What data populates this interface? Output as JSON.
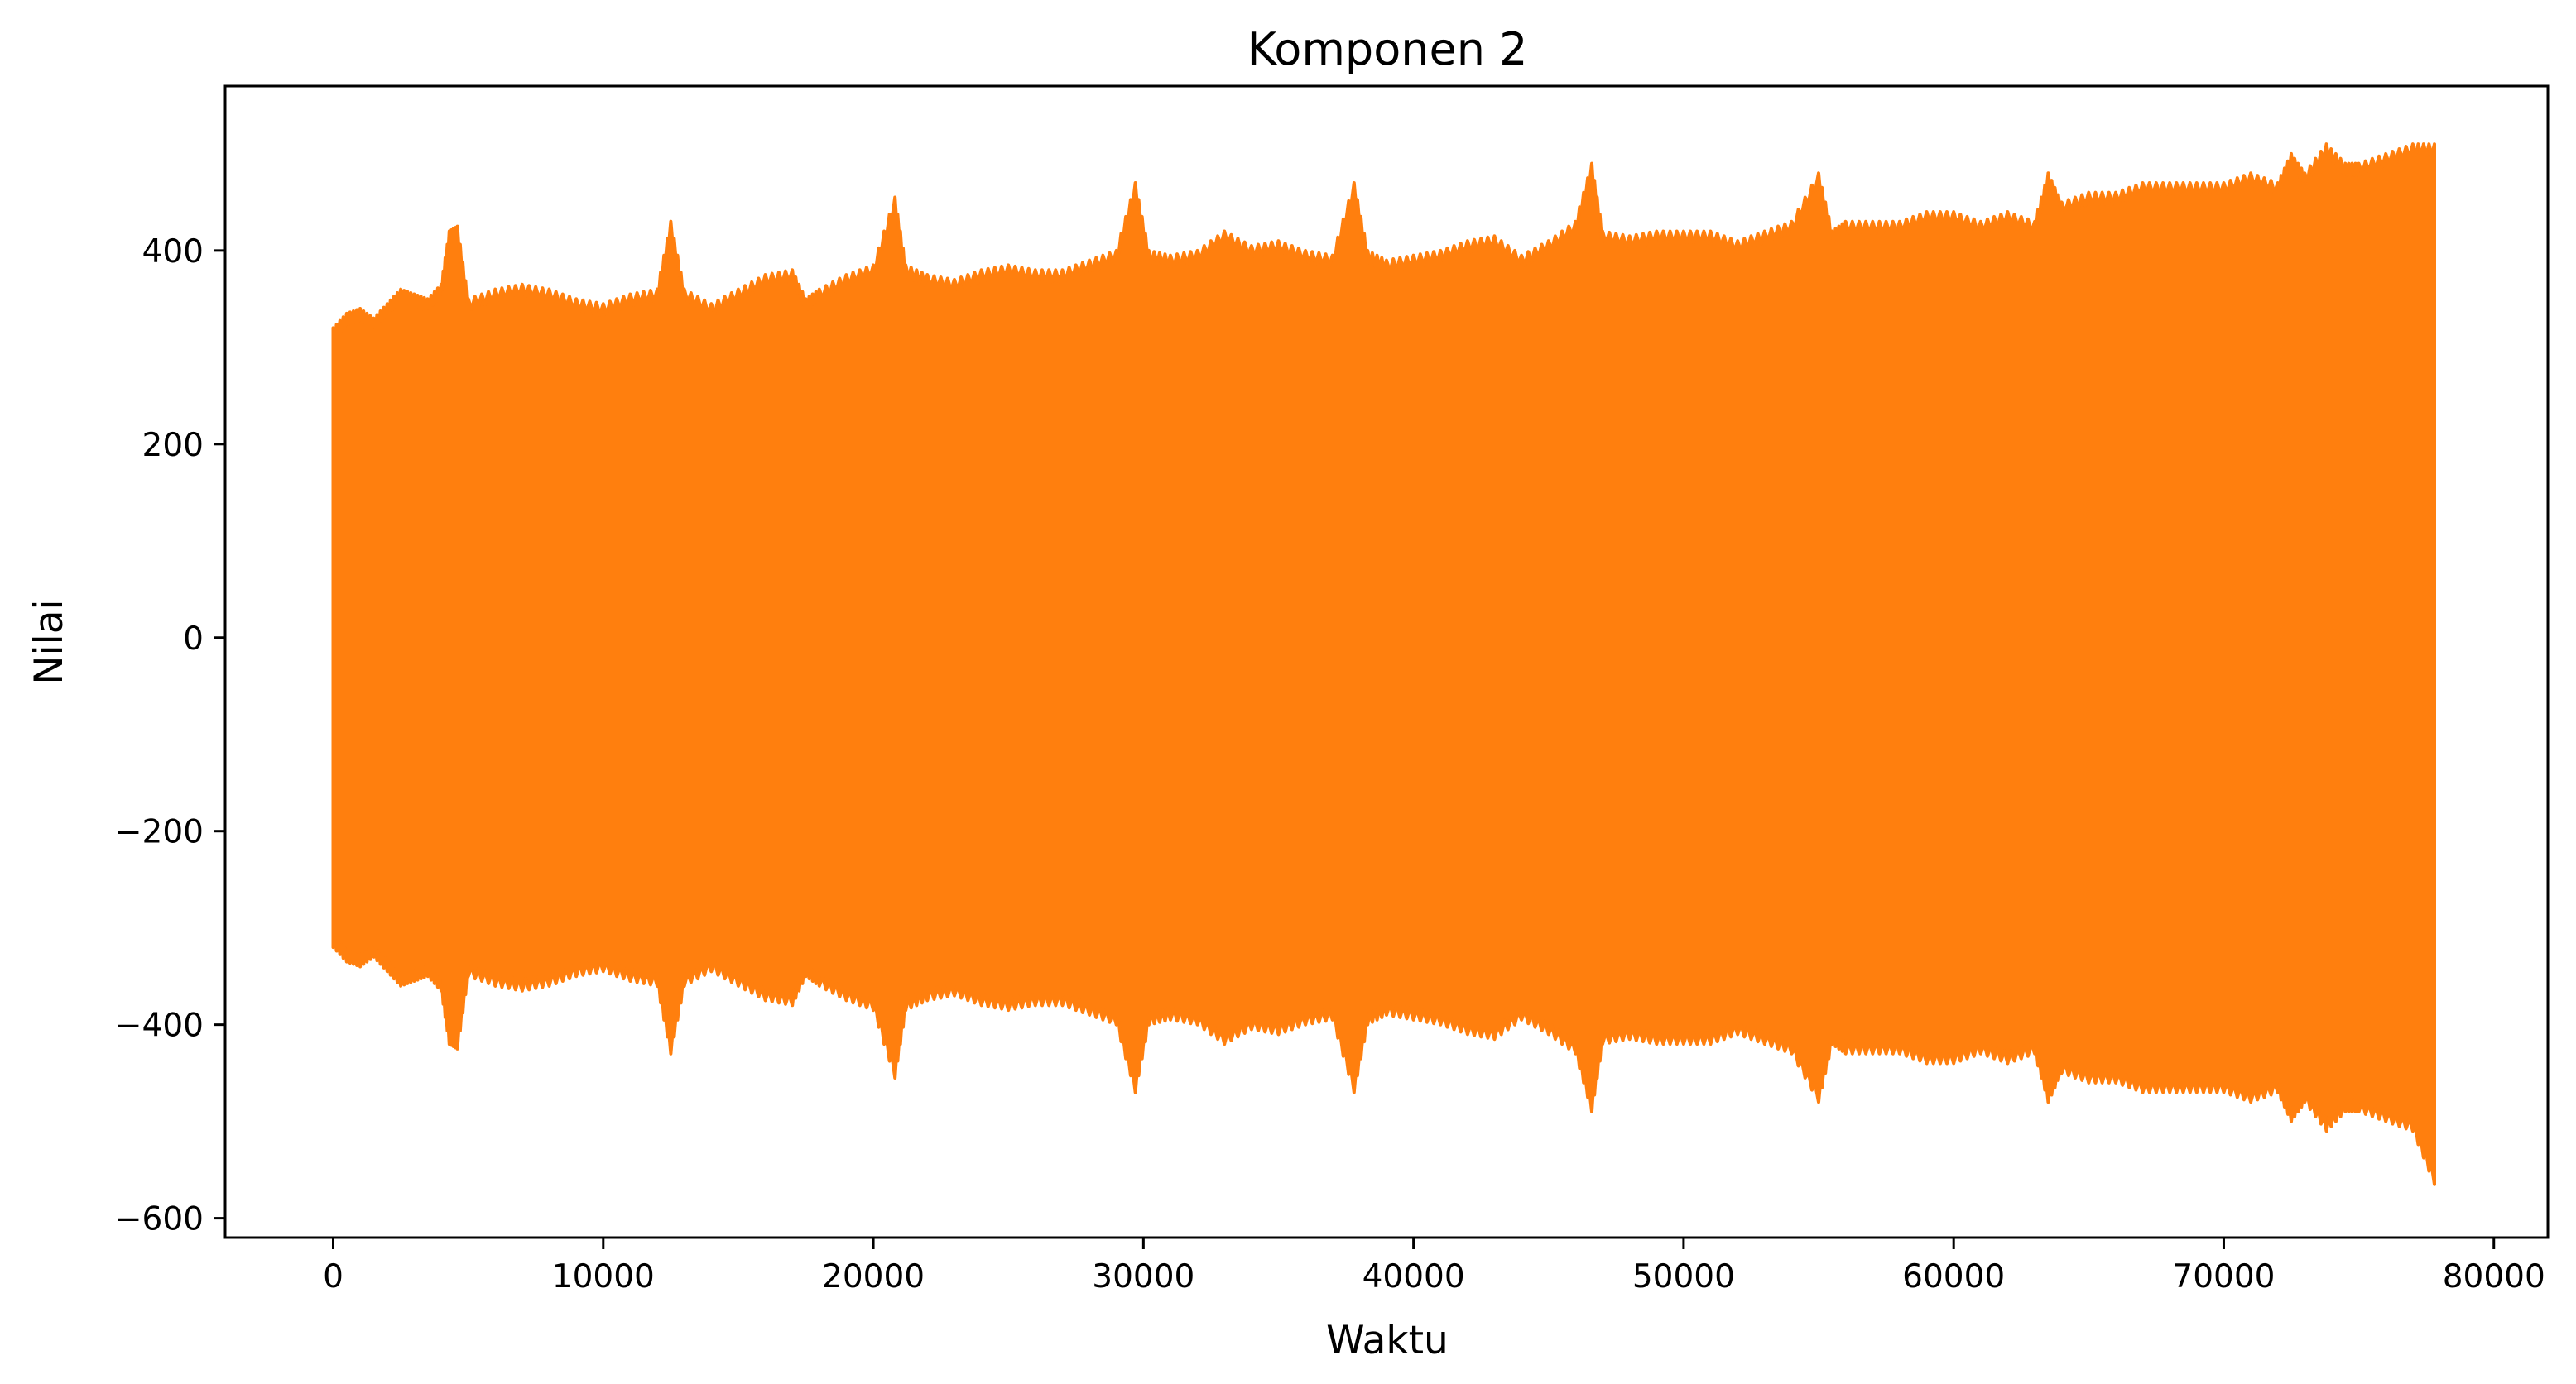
{
  "chart_data": {
    "type": "area",
    "title": "Komponen 2",
    "xlabel": "Waktu",
    "ylabel": "Nilai",
    "xlim": [
      -4000,
      82000
    ],
    "ylim": [
      -620,
      570
    ],
    "xticks": [
      0,
      10000,
      20000,
      30000,
      40000,
      50000,
      60000,
      70000,
      80000
    ],
    "xtick_labels": [
      "0",
      "10000",
      "20000",
      "30000",
      "40000",
      "50000",
      "60000",
      "70000",
      "80000"
    ],
    "yticks": [
      -600,
      -400,
      -200,
      0,
      200,
      400
    ],
    "ytick_labels": [
      "−600",
      "−400",
      "−200",
      "0",
      "200",
      "400"
    ],
    "grid": false,
    "legend": "none",
    "series": [
      {
        "color": "#ff7f0e",
        "description_envelope": true,
        "x": [
          0,
          500,
          1000,
          1500,
          2000,
          2500,
          3000,
          3500,
          4000,
          4300,
          4600,
          5000,
          6000,
          7000,
          8000,
          9000,
          10000,
          11000,
          12000,
          12500,
          13000,
          14000,
          15000,
          16000,
          17000,
          17500,
          18000,
          19000,
          20000,
          20800,
          21200,
          22000,
          23000,
          24000,
          25000,
          26000,
          27000,
          28000,
          29000,
          29700,
          30200,
          31000,
          32000,
          33000,
          34000,
          35000,
          36000,
          37000,
          37800,
          38300,
          39000,
          40000,
          41000,
          42000,
          43000,
          44000,
          45000,
          46000,
          46600,
          47000,
          48000,
          49000,
          50000,
          51000,
          52000,
          53000,
          54000,
          55000,
          55500,
          56000,
          57000,
          58000,
          59000,
          60000,
          61000,
          62000,
          63000,
          63500,
          64000,
          65000,
          66000,
          67000,
          68000,
          69000,
          70000,
          71000,
          72000,
          72500,
          73000,
          73800,
          74500,
          75000,
          76000,
          77000,
          77800
        ],
        "upper": [
          320,
          335,
          340,
          330,
          345,
          360,
          355,
          350,
          365,
          420,
          425,
          350,
          360,
          365,
          360,
          350,
          345,
          355,
          360,
          430,
          360,
          345,
          360,
          375,
          380,
          350,
          360,
          375,
          385,
          455,
          385,
          375,
          370,
          380,
          385,
          380,
          380,
          390,
          400,
          470,
          400,
          395,
          400,
          420,
          405,
          410,
          400,
          395,
          470,
          400,
          390,
          395,
          400,
          410,
          415,
          395,
          410,
          430,
          490,
          420,
          415,
          420,
          420,
          420,
          410,
          420,
          430,
          480,
          420,
          430,
          430,
          430,
          440,
          440,
          430,
          440,
          430,
          480,
          450,
          460,
          460,
          470,
          470,
          470,
          470,
          480,
          470,
          500,
          480,
          510,
          490,
          490,
          500,
          510,
          510
        ],
        "lower": [
          -320,
          -335,
          -340,
          -330,
          -345,
          -360,
          -355,
          -350,
          -365,
          -420,
          -425,
          -350,
          -360,
          -365,
          -360,
          -350,
          -345,
          -355,
          -360,
          -430,
          -360,
          -345,
          -360,
          -375,
          -380,
          -350,
          -360,
          -375,
          -385,
          -455,
          -385,
          -375,
          -370,
          -380,
          -385,
          -380,
          -380,
          -390,
          -400,
          -470,
          -400,
          -395,
          -400,
          -420,
          -405,
          -410,
          -400,
          -395,
          -470,
          -400,
          -390,
          -395,
          -400,
          -410,
          -415,
          -395,
          -410,
          -430,
          -490,
          -420,
          -415,
          -420,
          -420,
          -420,
          -410,
          -420,
          -430,
          -480,
          -420,
          -430,
          -430,
          -430,
          -440,
          -440,
          -430,
          -440,
          -430,
          -480,
          -450,
          -460,
          -460,
          -470,
          -470,
          -470,
          -470,
          -480,
          -470,
          -500,
          -480,
          -510,
          -490,
          -490,
          -500,
          -510,
          -565
        ]
      }
    ]
  }
}
